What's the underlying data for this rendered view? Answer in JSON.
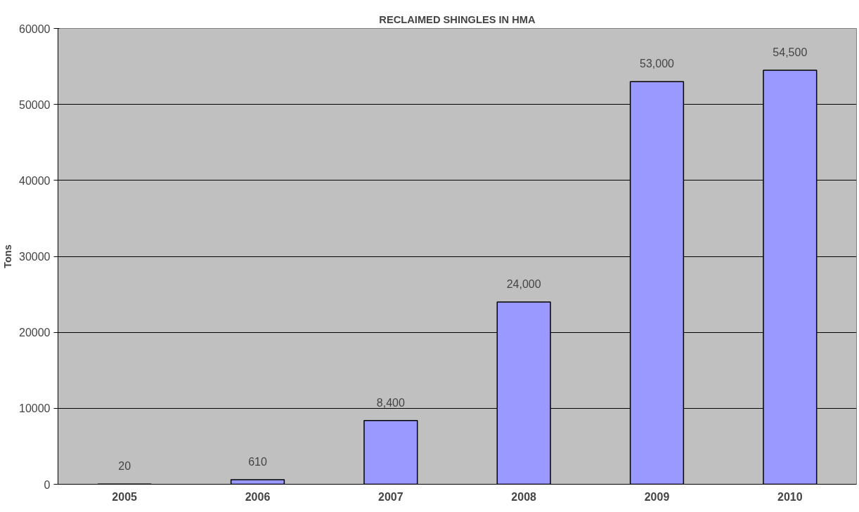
{
  "chart_data": {
    "type": "bar",
    "title": "RECLAIMED SHINGLES IN HMA",
    "ylabel": "Tons",
    "categories": [
      "2005",
      "2006",
      "2007",
      "2008",
      "2009",
      "2010"
    ],
    "values": [
      20,
      610,
      8400,
      24000,
      53000,
      54500
    ],
    "value_labels": [
      "20",
      "610",
      "8,400",
      "24,000",
      "53,000",
      "54,500"
    ],
    "color": "#9999ff",
    "ylim": [
      0,
      60000
    ],
    "yticks": [
      0,
      10000,
      20000,
      30000,
      40000,
      50000,
      60000
    ],
    "grid": "y"
  }
}
